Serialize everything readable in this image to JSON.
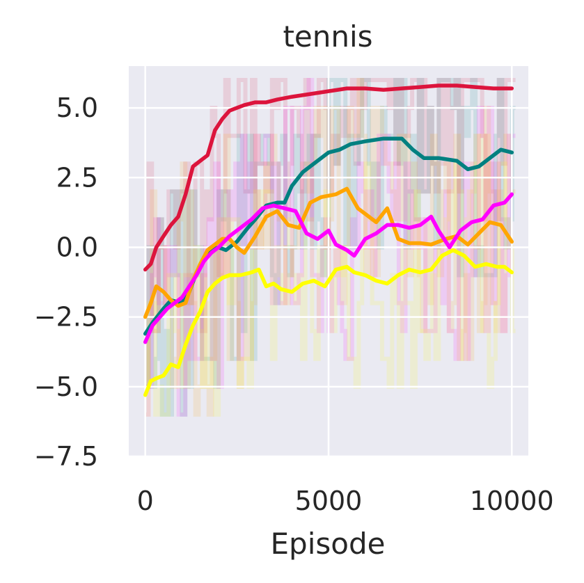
{
  "chart_data": {
    "type": "line",
    "title": "tennis",
    "xlabel": "Episode",
    "ylabel": "",
    "xlim": [
      -450,
      10450
    ],
    "ylim": [
      -7.5,
      6.5
    ],
    "xticks": [
      0,
      5000,
      10000
    ],
    "xtick_labels": [
      "0",
      "5000",
      "10000"
    ],
    "yticks": [
      -7.5,
      -5.0,
      -2.5,
      0.0,
      2.5,
      5.0
    ],
    "ytick_labels": [
      "−7.5",
      "−5.0",
      "−2.5",
      "0.0",
      "2.5",
      "5.0"
    ],
    "grid": true,
    "background": "#eaeaf2",
    "raw_band": {
      "min": -6,
      "max": 6,
      "extreme_min": -7
    },
    "series": [
      {
        "color": "#dc143c",
        "x": [
          0,
          150,
          300,
          500,
          700,
          900,
          1100,
          1300,
          1500,
          1700,
          1900,
          2100,
          2300,
          2500,
          2700,
          3000,
          3300,
          3600,
          4000,
          4500,
          5000,
          5500,
          6000,
          6500,
          7000,
          7500,
          8000,
          8500,
          9000,
          9500,
          10000
        ],
        "values": [
          -0.8,
          -0.6,
          0.0,
          0.4,
          0.8,
          1.1,
          1.9,
          2.9,
          3.1,
          3.3,
          4.2,
          4.6,
          4.9,
          5.0,
          5.1,
          5.2,
          5.2,
          5.3,
          5.4,
          5.5,
          5.6,
          5.7,
          5.7,
          5.65,
          5.7,
          5.75,
          5.8,
          5.8,
          5.75,
          5.7,
          5.7
        ]
      },
      {
        "color": "#008080",
        "x": [
          0,
          200,
          500,
          700,
          1000,
          1200,
          1400,
          1600,
          1800,
          2000,
          2200,
          2500,
          2800,
          3000,
          3300,
          3600,
          3800,
          4000,
          4300,
          4700,
          5000,
          5300,
          5600,
          6000,
          6500,
          7000,
          7300,
          7600,
          8000,
          8500,
          8800,
          9100,
          9400,
          9700,
          10000
        ],
        "values": [
          -3.1,
          -2.7,
          -2.2,
          -1.9,
          -2.0,
          -1.6,
          -0.9,
          -0.4,
          -0.1,
          0.0,
          -0.1,
          0.2,
          0.7,
          1.0,
          1.5,
          1.6,
          1.6,
          2.2,
          2.7,
          3.1,
          3.4,
          3.5,
          3.7,
          3.8,
          3.9,
          3.9,
          3.5,
          3.2,
          3.2,
          3.1,
          2.8,
          2.9,
          3.2,
          3.5,
          3.4
        ]
      },
      {
        "color": "#ffa500",
        "x": [
          0,
          150,
          300,
          500,
          700,
          900,
          1100,
          1300,
          1500,
          1700,
          1900,
          2100,
          2300,
          2500,
          2700,
          3000,
          3300,
          3600,
          3900,
          4200,
          4500,
          4800,
          5200,
          5500,
          5800,
          6000,
          6300,
          6600,
          6900,
          7200,
          7500,
          7800,
          8200,
          8500,
          8800,
          9100,
          9400,
          9700,
          10000
        ],
        "values": [
          -2.5,
          -2.0,
          -1.4,
          -1.6,
          -1.9,
          -2.1,
          -2.0,
          -1.2,
          -0.6,
          -0.1,
          0.1,
          0.3,
          0.3,
          0.0,
          -0.2,
          0.4,
          1.1,
          1.3,
          0.8,
          0.7,
          1.6,
          1.8,
          1.9,
          2.1,
          1.4,
          1.2,
          0.9,
          1.4,
          0.3,
          0.15,
          0.15,
          0.1,
          0.3,
          0.4,
          0.1,
          0.5,
          0.9,
          0.8,
          0.2
        ]
      },
      {
        "color": "#ff00ff",
        "x": [
          0,
          200,
          400,
          600,
          800,
          1000,
          1200,
          1400,
          1600,
          1800,
          2000,
          2300,
          2600,
          2900,
          3200,
          3500,
          3800,
          4100,
          4400,
          4700,
          5000,
          5200,
          5500,
          5700,
          6000,
          6300,
          6600,
          6900,
          7200,
          7500,
          7800,
          8000,
          8300,
          8600,
          8900,
          9200,
          9500,
          9800,
          10000
        ],
        "values": [
          -3.4,
          -2.8,
          -2.5,
          -2.2,
          -2.0,
          -1.8,
          -1.4,
          -1.0,
          -0.5,
          -0.2,
          0.0,
          0.4,
          0.7,
          1.0,
          1.4,
          1.5,
          1.4,
          1.3,
          0.5,
          0.3,
          0.6,
          0.1,
          -0.1,
          -0.3,
          0.3,
          0.5,
          0.8,
          0.8,
          0.7,
          0.8,
          1.1,
          0.6,
          0.0,
          0.6,
          0.9,
          1.0,
          1.5,
          1.6,
          1.9
        ]
      },
      {
        "color": "#ffff00",
        "x": [
          0,
          150,
          300,
          500,
          700,
          900,
          1100,
          1300,
          1500,
          1700,
          1900,
          2100,
          2300,
          2600,
          2900,
          3100,
          3300,
          3500,
          3700,
          4000,
          4300,
          4600,
          4900,
          5200,
          5500,
          5700,
          6000,
          6300,
          6600,
          6900,
          7200,
          7500,
          7800,
          8100,
          8400,
          8700,
          9000,
          9300,
          9600,
          9800,
          10000
        ],
        "values": [
          -5.3,
          -4.8,
          -4.7,
          -4.6,
          -4.2,
          -4.3,
          -3.5,
          -2.8,
          -2.3,
          -1.6,
          -1.3,
          -1.1,
          -1.0,
          -1.0,
          -0.9,
          -0.8,
          -1.4,
          -1.3,
          -1.5,
          -1.6,
          -1.3,
          -1.2,
          -1.4,
          -0.8,
          -0.7,
          -0.9,
          -1.0,
          -1.2,
          -1.3,
          -1.0,
          -0.8,
          -0.9,
          -0.8,
          -0.3,
          -0.1,
          -0.3,
          -0.7,
          -0.6,
          -0.7,
          -0.7,
          -0.9
        ]
      }
    ]
  }
}
